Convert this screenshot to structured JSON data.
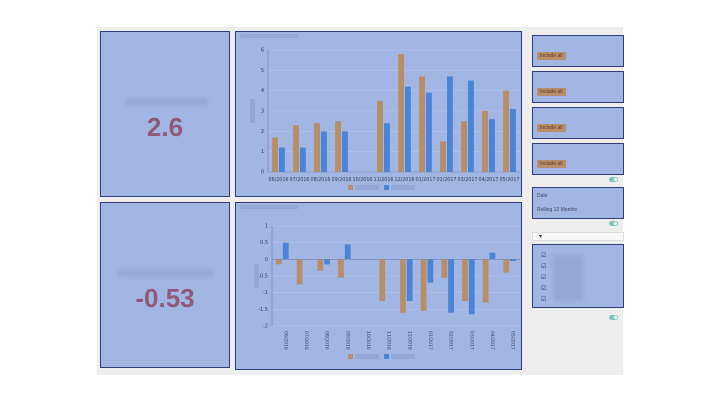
{
  "kpis": [
    {
      "value": "2.6"
    },
    {
      "value": "-0.53"
    }
  ],
  "colors": {
    "series_a": "#b88e68",
    "series_b": "#4a84d6",
    "panel_bg": "#a2b6e3",
    "kpi_text": "#8f5a78"
  },
  "sidebar": {
    "include_buttons": [
      "Include all",
      "Include all",
      "Include all",
      "Include all"
    ],
    "date_label": "Date",
    "date_value": "Rolling 12 Months"
  },
  "chart_data": [
    {
      "type": "bar",
      "categories": [
        "06/2016",
        "07/2016",
        "08/2016",
        "09/2016",
        "10/2016",
        "11/2016",
        "12/2016",
        "01/2017",
        "02/2017",
        "03/2017",
        "04/2017",
        "05/2017"
      ],
      "series": [
        {
          "values": [
            1.7,
            2.3,
            2.4,
            2.5,
            0,
            3.5,
            5.8,
            4.7,
            1.5,
            2.5,
            3.0,
            4.0
          ]
        },
        {
          "values": [
            1.2,
            1.2,
            2.0,
            2.0,
            0,
            2.4,
            4.2,
            3.9,
            4.7,
            4.5,
            2.6,
            3.1
          ]
        }
      ],
      "ylim": [
        0,
        6
      ],
      "yticks": [
        0,
        1,
        2,
        3,
        4,
        5,
        6
      ],
      "tick_labels": [
        "06/2016",
        "07/2016",
        "08/2016",
        "09/2016",
        "10/2016",
        "11/2016",
        "12/2016",
        "01/2017",
        "02/2017",
        "03/2017",
        "04/2017",
        "05/2017"
      ],
      "grid": true,
      "legend": "bottom"
    },
    {
      "type": "bar",
      "categories": [
        "06/2016",
        "07/2016",
        "08/2016",
        "09/2016",
        "10/2016",
        "11/2016",
        "12/2016",
        "01/2017",
        "02/2017",
        "03/2017",
        "04/2017",
        "05/2017"
      ],
      "series": [
        {
          "values": [
            -0.15,
            -0.75,
            -0.35,
            -0.55,
            0,
            -1.25,
            -1.6,
            -1.55,
            -0.55,
            -1.25,
            -1.3,
            -0.4
          ]
        },
        {
          "values": [
            0.5,
            0,
            -0.15,
            0.45,
            0,
            0,
            -1.25,
            -0.7,
            -1.6,
            -1.65,
            0.2,
            -0.05
          ]
        }
      ],
      "ylim": [
        -2,
        1
      ],
      "yticks": [
        -2,
        -1.5,
        -1,
        -0.5,
        0,
        0.5,
        1
      ],
      "tick_labels": [
        "06/2016",
        "07/2016",
        "08/2016",
        "09/2016",
        "10/2016",
        "11/2016",
        "12/2016",
        "01/2017",
        "02/2017",
        "03/2017",
        "04/2017",
        "05/2017"
      ],
      "grid": true,
      "legend": "bottom"
    }
  ]
}
